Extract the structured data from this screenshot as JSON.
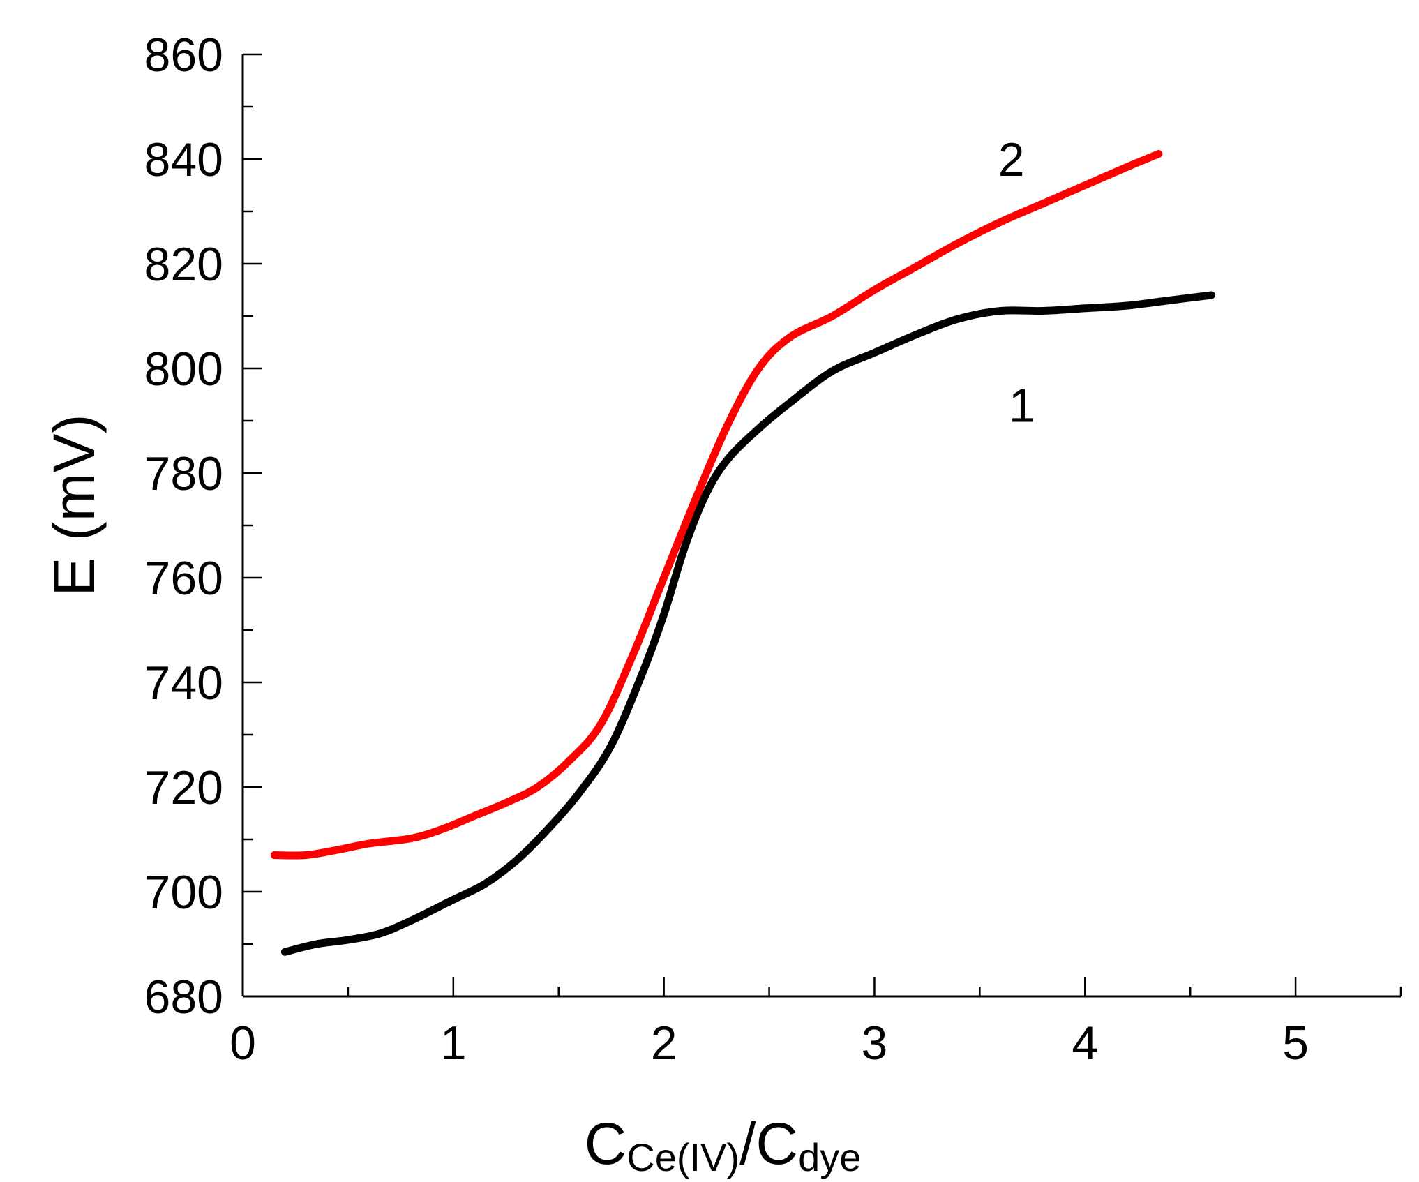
{
  "chart_data": {
    "type": "line",
    "xlabel": {
      "main": "C",
      "sub1": "Ce(IV)",
      "slash": "/C",
      "sub2": "dye"
    },
    "ylabel": "E (mV)",
    "xlim": [
      0,
      5.5
    ],
    "ylim": [
      680,
      860
    ],
    "x_ticks": [
      0,
      1,
      2,
      3,
      4,
      5
    ],
    "y_ticks": [
      680,
      700,
      720,
      740,
      760,
      780,
      800,
      820,
      840,
      860
    ],
    "x_minor_step": 0.5,
    "y_minor_step": 10,
    "series": [
      {
        "name": "1",
        "color": "#000000",
        "label_at": [
          3.7,
          793
        ],
        "points": [
          [
            0.2,
            688.5
          ],
          [
            0.35,
            690
          ],
          [
            0.5,
            690.8
          ],
          [
            0.65,
            692
          ],
          [
            0.8,
            694.5
          ],
          [
            1.0,
            698.5
          ],
          [
            1.15,
            701.5
          ],
          [
            1.3,
            706
          ],
          [
            1.45,
            712
          ],
          [
            1.6,
            719
          ],
          [
            1.75,
            728
          ],
          [
            1.9,
            742
          ],
          [
            2.0,
            753
          ],
          [
            2.1,
            766
          ],
          [
            2.2,
            776
          ],
          [
            2.3,
            782.5
          ],
          [
            2.45,
            788.5
          ],
          [
            2.6,
            793.5
          ],
          [
            2.8,
            799.5
          ],
          [
            3.0,
            803
          ],
          [
            3.2,
            806.5
          ],
          [
            3.4,
            809.5
          ],
          [
            3.6,
            811
          ],
          [
            3.8,
            811
          ],
          [
            4.0,
            811.5
          ],
          [
            4.2,
            812
          ],
          [
            4.4,
            813
          ],
          [
            4.6,
            814
          ]
        ]
      },
      {
        "name": "2",
        "color": "#ff0000",
        "label_at": [
          3.65,
          840
        ],
        "points": [
          [
            0.15,
            707
          ],
          [
            0.3,
            707
          ],
          [
            0.45,
            708
          ],
          [
            0.6,
            709.2
          ],
          [
            0.8,
            710.2
          ],
          [
            0.95,
            712
          ],
          [
            1.1,
            714.5
          ],
          [
            1.25,
            717
          ],
          [
            1.4,
            720
          ],
          [
            1.55,
            725
          ],
          [
            1.7,
            732
          ],
          [
            1.85,
            745
          ],
          [
            2.0,
            760
          ],
          [
            2.15,
            775
          ],
          [
            2.3,
            789
          ],
          [
            2.45,
            800
          ],
          [
            2.6,
            806
          ],
          [
            2.8,
            810
          ],
          [
            3.0,
            815
          ],
          [
            3.2,
            819.5
          ],
          [
            3.4,
            824
          ],
          [
            3.6,
            828
          ],
          [
            3.8,
            831.5
          ],
          [
            4.0,
            835
          ],
          [
            4.2,
            838.5
          ],
          [
            4.35,
            841
          ]
        ]
      }
    ]
  }
}
